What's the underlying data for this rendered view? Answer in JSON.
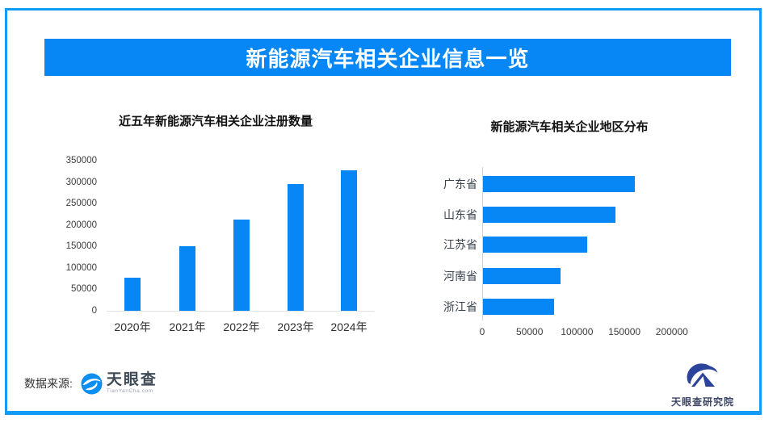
{
  "page": {
    "border_color": "#129bf9",
    "background": "#ffffff"
  },
  "banner": {
    "title": "新能源汽车相关企业信息一览",
    "bg_color": "#0786f5",
    "text_color": "#ffffff"
  },
  "chart_data": [
    {
      "type": "bar",
      "title": "近五年新能源汽车相关企业注册数量",
      "categories": [
        "2020年",
        "2021年",
        "2022年",
        "2023年",
        "2024年"
      ],
      "values": [
        78000,
        150000,
        213000,
        295000,
        327000
      ],
      "xlabel": "",
      "ylabel": "",
      "ylim": [
        0,
        350000
      ],
      "yticks": [
        0,
        50000,
        100000,
        150000,
        200000,
        250000,
        300000,
        350000
      ],
      "bar_color": "#0786f5",
      "grid": false,
      "legend": "none"
    },
    {
      "type": "bar",
      "orientation": "horizontal",
      "title": "新能源汽车相关企业地区分布",
      "categories": [
        "广东省",
        "山东省",
        "江苏省",
        "河南省",
        "浙江省"
      ],
      "values": [
        160000,
        140000,
        110000,
        82000,
        75000
      ],
      "xlabel": "",
      "ylabel": "",
      "xlim": [
        0,
        230000
      ],
      "xticks": [
        0,
        50000,
        100000,
        150000,
        200000
      ],
      "bar_color": "#0786f5",
      "grid": false,
      "legend": "none"
    }
  ],
  "footer": {
    "source_label": "数据来源:",
    "logo_text": "天眼查",
    "logo_sub": "TianYanCha.com"
  },
  "footer_right": {
    "logo_text": "天眼查研究院"
  },
  "icons": {
    "tianyancha_eye": "blue-eye-swirl-icon",
    "research_institute": "navy-mountain-swoosh-icon"
  }
}
